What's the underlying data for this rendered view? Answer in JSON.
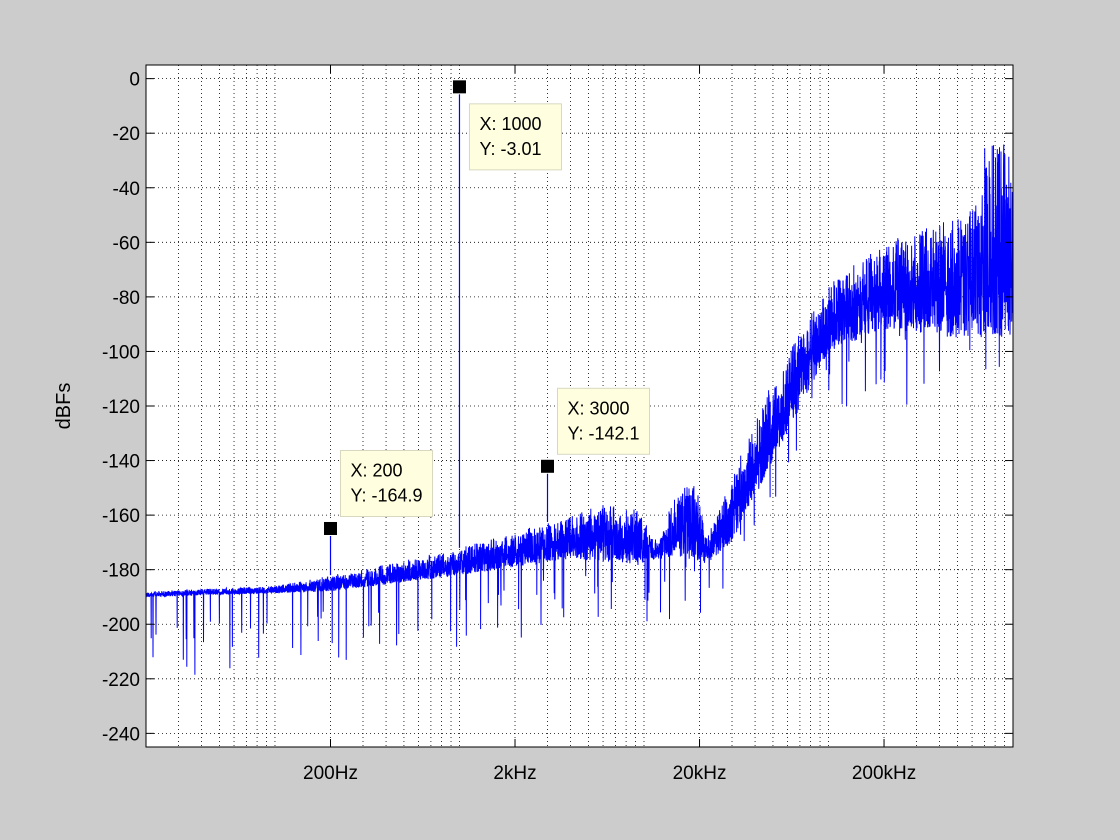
{
  "chart_data": {
    "type": "line",
    "title": "",
    "xlabel": "",
    "ylabel": "dBFs",
    "x_scale": "log",
    "xlim_hz": [
      20,
      1000000
    ],
    "ylim": [
      -245,
      5
    ],
    "grid": true,
    "x_ticks": [
      {
        "value": 200,
        "label": "200Hz"
      },
      {
        "value": 2000,
        "label": "2kHz"
      },
      {
        "value": 20000,
        "label": "20kHz"
      },
      {
        "value": 200000,
        "label": "200kHz"
      }
    ],
    "y_ticks": [
      0,
      -20,
      -40,
      -60,
      -80,
      -100,
      -120,
      -140,
      -160,
      -180,
      -200,
      -220,
      -240
    ],
    "line_color": "#0000ff",
    "background_color": "#cccccc",
    "plot_background": "#ffffff",
    "series": [
      {
        "floor_points": [
          [
            20,
            -188
          ],
          [
            40,
            -187
          ],
          [
            100,
            -186
          ],
          [
            200,
            -182
          ],
          [
            400,
            -178
          ],
          [
            1000,
            -172
          ],
          [
            2000,
            -166
          ],
          [
            4000,
            -160
          ],
          [
            6000,
            -156
          ],
          [
            9000,
            -157
          ],
          [
            12000,
            -170
          ],
          [
            15000,
            -148
          ],
          [
            19000,
            -147
          ],
          [
            22000,
            -168
          ],
          [
            30000,
            -145
          ],
          [
            50000,
            -110
          ],
          [
            100000,
            -75
          ],
          [
            200000,
            -60
          ],
          [
            500000,
            -50
          ],
          [
            650000,
            -45
          ],
          [
            700000,
            -25
          ],
          [
            1000000,
            -22
          ]
        ],
        "lower_edge_points": [
          [
            20,
            -190
          ],
          [
            200,
            -188
          ],
          [
            1000,
            -182
          ],
          [
            4000,
            -176
          ],
          [
            9000,
            -178
          ],
          [
            15000,
            -175
          ],
          [
            22000,
            -178
          ],
          [
            30000,
            -170
          ],
          [
            50000,
            -140
          ],
          [
            100000,
            -100
          ],
          [
            200000,
            -92
          ],
          [
            500000,
            -95
          ],
          [
            1000000,
            -95
          ]
        ],
        "tones": [
          {
            "x": 1000,
            "y": -3.01
          },
          {
            "x": 3000,
            "y": -142.1
          },
          {
            "x": 200,
            "y": -164.9
          }
        ]
      }
    ],
    "datatips": [
      {
        "x_text": "X: 1000",
        "y_text": "Y: -3.01",
        "x": 1000,
        "y": -3.01
      },
      {
        "x_text": "X: 3000",
        "y_text": "Y: -142.1",
        "x": 3000,
        "y": -142.1
      },
      {
        "x_text": "X: 200",
        "y_text": "Y: -164.9",
        "x": 200,
        "y": -164.9
      }
    ]
  }
}
